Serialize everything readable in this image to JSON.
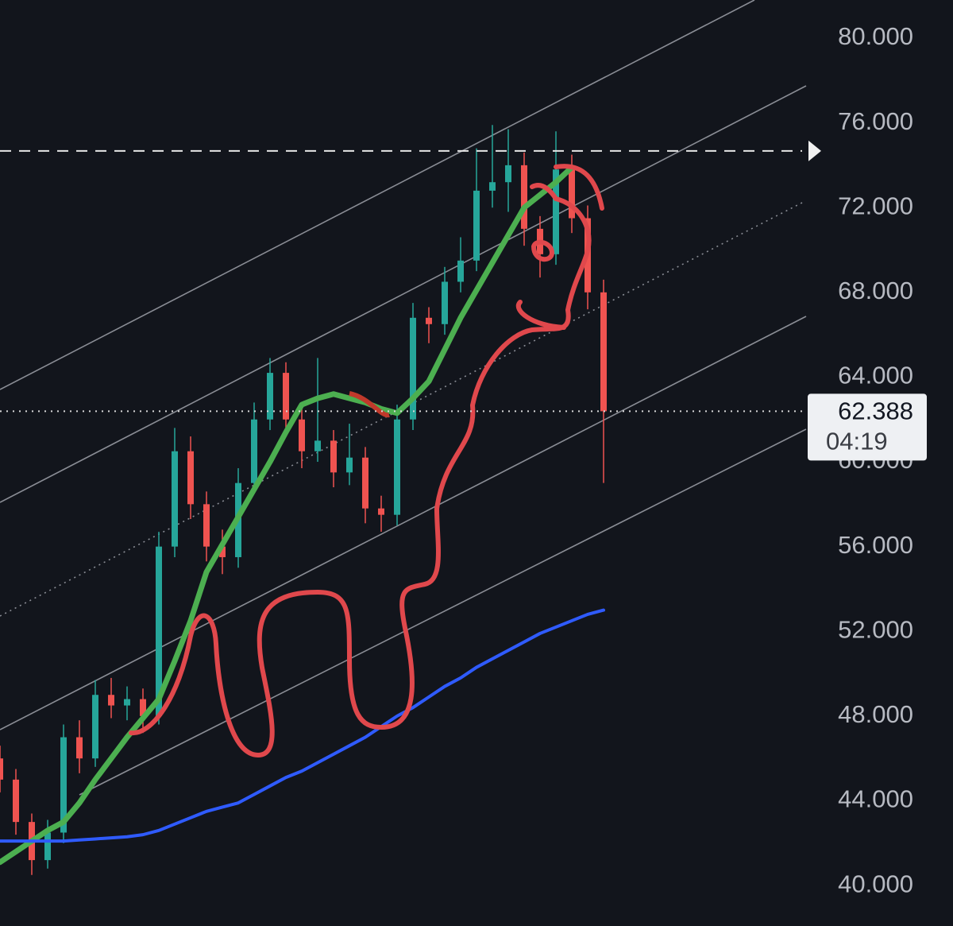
{
  "chart_data": {
    "type": "candlestick",
    "open": [
      46000,
      45000,
      43000,
      41200,
      42500,
      47000,
      46000,
      49000,
      48500,
      48800,
      48000,
      56000,
      60500,
      58000,
      56000,
      55500,
      59000,
      62000,
      64200,
      62000,
      60500,
      61000,
      59500,
      60200,
      57800,
      57500,
      62000,
      66800,
      66500,
      68500,
      69500,
      72800,
      73200,
      74000,
      71000,
      69800,
      73800,
      71500,
      68000
    ],
    "high": [
      46600,
      45500,
      43400,
      43100,
      47600,
      47800,
      49700,
      49800,
      49400,
      49300,
      56700,
      61600,
      61200,
      58600,
      56800,
      59700,
      62800,
      64900,
      64700,
      62600,
      64900,
      61500,
      61800,
      60700,
      58400,
      62700,
      67500,
      67300,
      69200,
      70600,
      74800,
      75900,
      75700,
      74600,
      71600,
      75600,
      74500,
      72100,
      68600
    ],
    "low": [
      44400,
      42400,
      40500,
      40800,
      42000,
      45300,
      45600,
      47900,
      47800,
      47200,
      47600,
      55500,
      57300,
      55300,
      54700,
      55000,
      58500,
      61500,
      61300,
      59700,
      60000,
      58800,
      58900,
      57100,
      56700,
      57000,
      61500,
      65600,
      66000,
      68000,
      69000,
      72000,
      71800,
      70200,
      68700,
      69300,
      70800,
      67200,
      59000
    ],
    "close": [
      45000,
      43000,
      41200,
      42500,
      47000,
      46000,
      49000,
      48500,
      48800,
      48000,
      56000,
      60500,
      58000,
      56000,
      55500,
      59000,
      62000,
      64200,
      62000,
      60500,
      61000,
      59500,
      60200,
      57800,
      57500,
      62000,
      66800,
      66500,
      68500,
      69500,
      72800,
      73200,
      74000,
      71000,
      69800,
      73800,
      71500,
      68000,
      62388
    ],
    "up_color": "#26a69a",
    "down_color": "#ef5350",
    "series": [
      {
        "color": "#4caf50",
        "values": [
          41100,
          41600,
          42100,
          42600,
          43000,
          43900,
          45000,
          46000,
          47000,
          47900,
          48800,
          50600,
          52500,
          54800,
          56100,
          57400,
          58700,
          60000,
          61400,
          62700,
          63000,
          63200,
          63000,
          62800,
          62500,
          62300,
          63000,
          63800,
          65300,
          66800,
          68100,
          69400,
          70700,
          72000,
          72600,
          73200,
          73900,
          null,
          null
        ]
      },
      {
        "color": "#2f5bff",
        "values": [
          42100,
          42100,
          42100,
          42100,
          42100,
          42150,
          42200,
          42250,
          42300,
          42400,
          42600,
          42900,
          43200,
          43500,
          43700,
          43900,
          44300,
          44700,
          45100,
          45400,
          45800,
          46200,
          46600,
          47000,
          47500,
          48000,
          48400,
          48900,
          49400,
          49800,
          50300,
          50700,
          51100,
          51500,
          51900,
          52200,
          52500,
          52800,
          53000
        ]
      }
    ],
    "ylim": [
      38090,
      81800
    ],
    "yticks": [
      {
        "value": 40000,
        "label": "40.000"
      },
      {
        "value": 44000,
        "label": "44.000"
      },
      {
        "value": 48000,
        "label": "48.000"
      },
      {
        "value": 52000,
        "label": "52.000"
      },
      {
        "value": 56000,
        "label": "56.000"
      },
      {
        "value": 60000,
        "label": "60.000"
      },
      {
        "value": 64000,
        "label": "64.000"
      },
      {
        "value": 68000,
        "label": "68.000"
      },
      {
        "value": 72000,
        "label": "72.000"
      },
      {
        "value": 76000,
        "label": "76.000"
      },
      {
        "value": 80000,
        "label": "80.000"
      }
    ],
    "grid": false,
    "alert_line": 74675,
    "price_line": {
      "value": 62388,
      "label": "62.388"
    },
    "countdown": "04:19"
  }
}
